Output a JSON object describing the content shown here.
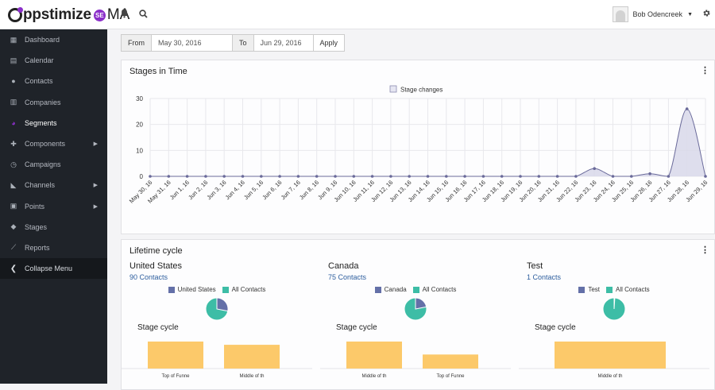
{
  "app": {
    "name": "ppstimize",
    "badge": "SE",
    "suffix": "MA"
  },
  "header": {
    "user_name": "Bob Odencreek"
  },
  "sidebar": {
    "items": [
      {
        "label": "Dashboard"
      },
      {
        "label": "Calendar"
      },
      {
        "label": "Contacts"
      },
      {
        "label": "Companies"
      },
      {
        "label": "Segments"
      },
      {
        "label": "Components"
      },
      {
        "label": "Campaigns"
      },
      {
        "label": "Channels"
      },
      {
        "label": "Points"
      },
      {
        "label": "Stages"
      },
      {
        "label": "Reports"
      },
      {
        "label": "Collapse Menu"
      }
    ]
  },
  "filter": {
    "from_label": "From",
    "from_value": "May 30, 2016",
    "to_label": "To",
    "to_value": "Jun 29, 2016",
    "apply_label": "Apply"
  },
  "stages_panel": {
    "title": "Stages in Time",
    "menu": "⋮"
  },
  "lifecycle_panel": {
    "title": "Lifetime cycle",
    "menu": "⋮"
  },
  "colors": {
    "accent": "#8b2fc9",
    "sidebar_bg": "#1f2329",
    "pie_blue": "#6470a8",
    "pie_teal": "#3dbda6",
    "bar_yellow": "#fcc96a"
  },
  "chart_data": {
    "type": "area",
    "legend": [
      "Stage changes"
    ],
    "x": [
      "May 30, 16",
      "May 31, 16",
      "Jun 1, 16",
      "Jun 2, 16",
      "Jun 3, 16",
      "Jun 4, 16",
      "Jun 5, 16",
      "Jun 6, 16",
      "Jun 7, 16",
      "Jun 8, 16",
      "Jun 9, 16",
      "Jun 10, 16",
      "Jun 11, 16",
      "Jun 12, 16",
      "Jun 13, 16",
      "Jun 14, 16",
      "Jun 15, 16",
      "Jun 16, 16",
      "Jun 17, 16",
      "Jun 18, 16",
      "Jun 19, 16",
      "Jun 20, 16",
      "Jun 21, 16",
      "Jun 22, 16",
      "Jun 23, 16",
      "Jun 24, 16",
      "Jun 25, 16",
      "Jun 26, 16",
      "Jun 27, 16",
      "Jun 28, 16",
      "Jun 29, 16"
    ],
    "series": [
      {
        "name": "Stage changes",
        "values": [
          0,
          0,
          0,
          0,
          0,
          0,
          0,
          0,
          0,
          0,
          0,
          0,
          0,
          0,
          0,
          0,
          0,
          0,
          0,
          0,
          0,
          0,
          0,
          0,
          3,
          0,
          0,
          1,
          0,
          26,
          0
        ]
      }
    ],
    "yticks": [
      "0",
      "10",
      "20",
      "30"
    ],
    "ylim": [
      0,
      30
    ]
  },
  "lifecycle": [
    {
      "name": "United States",
      "count_label": "90 Contacts",
      "legend": [
        "United States",
        "All Contacts"
      ],
      "pie": {
        "country": 0.28,
        "all": 0.72
      },
      "stage_title": "Stage cycle",
      "bars": [
        {
          "label": "Top of Funne",
          "value": 1.0
        },
        {
          "label": "Middle of th",
          "value": 0.88
        }
      ]
    },
    {
      "name": "Canada",
      "count_label": "75 Contacts",
      "legend": [
        "Canada",
        "All Contacts"
      ],
      "pie": {
        "country": 0.22,
        "all": 0.78
      },
      "stage_title": "Stage cycle",
      "bars": [
        {
          "label": "Middle of th",
          "value": 1.0
        },
        {
          "label": "Top of Funne",
          "value": 0.52
        }
      ]
    },
    {
      "name": "Test",
      "count_label": "1 Contacts",
      "legend": [
        "Test",
        "All Contacts"
      ],
      "pie": {
        "country": 0.01,
        "all": 0.99
      },
      "stage_title": "Stage cycle",
      "bars": [
        {
          "label": "Middle of th",
          "value": 1.0
        }
      ]
    }
  ]
}
